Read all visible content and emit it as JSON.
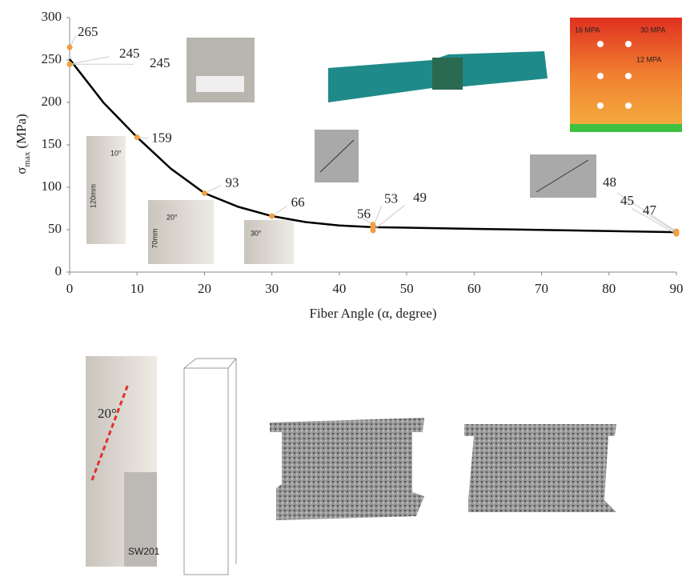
{
  "chart_data": {
    "type": "scatter",
    "x_label": "Fiber Angle (α, degree)",
    "y_label": {
      "symbol": "σ",
      "subscript": "max",
      "unit": "(MPa)"
    },
    "xlim": [
      0,
      90
    ],
    "xticks": [
      0,
      10,
      20,
      30,
      40,
      50,
      60,
      70,
      80,
      90
    ],
    "ylim": [
      0,
      300
    ],
    "yticks": [
      0,
      50,
      100,
      150,
      200,
      250,
      300
    ],
    "series": [
      {
        "color": "#f0a040",
        "x": [
          0,
          0,
          0,
          10,
          20,
          30,
          45,
          45,
          45,
          90,
          90,
          90
        ],
        "values": [
          265,
          245,
          245,
          159,
          93,
          66,
          56,
          53,
          49,
          48,
          45,
          47
        ]
      }
    ],
    "curve": {
      "color": "#000000",
      "x": [
        0,
        5,
        10,
        15,
        20,
        25,
        30,
        35,
        40,
        45,
        60,
        75,
        90
      ],
      "values": [
        251,
        200,
        159,
        122,
        93,
        77,
        66,
        59,
        55,
        53,
        51,
        49,
        47
      ]
    }
  },
  "insets": {
    "specimen_10": {
      "angle": "10°",
      "length": "120mm"
    },
    "specimen_20": {
      "angle": "20°",
      "length": "70mm"
    },
    "specimen_30": {
      "angle": "30°"
    },
    "contour": {
      "a": "16 MPA",
      "b": "30 MPA",
      "c": "12 MPA"
    },
    "specimen_large": {
      "angle": "20°",
      "id": "SW201"
    }
  }
}
